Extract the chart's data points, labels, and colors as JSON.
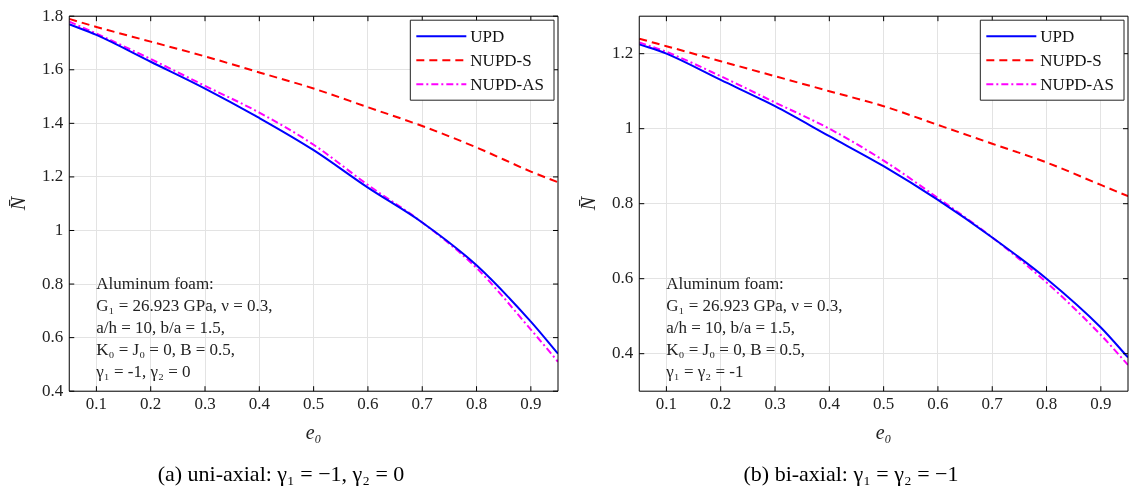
{
  "chart_data": [
    {
      "type": "line",
      "title": "(a) uni-axial: γ₁ = −1, γ₂ = 0",
      "xlabel": "e₀",
      "ylabel": "N̄",
      "xlim": [
        0.05,
        0.95
      ],
      "xticks": [
        0.1,
        0.2,
        0.3,
        0.4,
        0.5,
        0.6,
        0.7,
        0.8,
        0.9
      ],
      "ylim": [
        0.4,
        1.8
      ],
      "yticks": [
        0.4,
        0.6,
        0.8,
        1,
        1.2,
        1.4,
        1.6,
        1.8
      ],
      "grid": true,
      "legend": "top right",
      "x": [
        0.05,
        0.1,
        0.2,
        0.3,
        0.4,
        0.5,
        0.6,
        0.7,
        0.8,
        0.9,
        0.95
      ],
      "annotations": [
        "Aluminum foam:",
        "G₁ = 26.923 GPa, ν = 0.3,",
        "a/h = 10, b/a = 1.5,",
        "K₀ = J₀ = 0, B = 0.5,",
        "γ₁ = -1, γ₂ = 0"
      ],
      "series": [
        {
          "name": "UPD",
          "color": "#0000ff",
          "line_style": "solid",
          "values": [
            1.77,
            1.73,
            1.63,
            1.53,
            1.42,
            1.3,
            1.16,
            1.03,
            0.87,
            0.66,
            0.54
          ]
        },
        {
          "name": "NUPD-S",
          "color": "#ff0000",
          "line_style": "dashed",
          "values": [
            1.79,
            1.76,
            1.705,
            1.65,
            1.59,
            1.53,
            1.46,
            1.39,
            1.31,
            1.22,
            1.18
          ]
        },
        {
          "name": "NUPD-AS",
          "color": "#ff00ff",
          "line_style": "dotted",
          "values": [
            1.78,
            1.735,
            1.64,
            1.54,
            1.44,
            1.32,
            1.17,
            1.03,
            0.86,
            0.63,
            0.51
          ]
        }
      ]
    },
    {
      "type": "line",
      "title": "(b) bi-axial: γ₁ = γ₂ = −1",
      "xlabel": "e₀",
      "ylabel": "N̄",
      "xlim": [
        0.05,
        0.95
      ],
      "xticks": [
        0.1,
        0.2,
        0.3,
        0.4,
        0.5,
        0.6,
        0.7,
        0.8,
        0.9
      ],
      "ylim": [
        0.3,
        1.3
      ],
      "yticks": [
        0.4,
        0.6,
        0.8,
        1,
        1.2
      ],
      "grid": true,
      "legend": "top right",
      "x": [
        0.05,
        0.1,
        0.2,
        0.3,
        0.4,
        0.5,
        0.6,
        0.7,
        0.8,
        0.9,
        0.95
      ],
      "annotations": [
        "Aluminum foam:",
        "G₁ = 26.923 GPa, ν = 0.3,",
        "a/h = 10, b/a = 1.5,",
        "K₀ = J₀ = 0, B = 0.5,",
        "γ₁ = γ₂ = -1"
      ],
      "series": [
        {
          "name": "UPD",
          "color": "#0000ff",
          "line_style": "solid",
          "values": [
            1.225,
            1.2,
            1.13,
            1.06,
            0.98,
            0.9,
            0.81,
            0.71,
            0.6,
            0.47,
            0.39
          ]
        },
        {
          "name": "NUPD-S",
          "color": "#ff0000",
          "line_style": "dashed",
          "values": [
            1.24,
            1.22,
            1.18,
            1.14,
            1.1,
            1.06,
            1.01,
            0.96,
            0.91,
            0.85,
            0.82
          ]
        },
        {
          "name": "NUPD-AS",
          "color": "#ff00ff",
          "line_style": "dotted",
          "values": [
            1.23,
            1.205,
            1.14,
            1.07,
            1.0,
            0.915,
            0.815,
            0.71,
            0.59,
            0.45,
            0.37
          ]
        }
      ]
    }
  ]
}
